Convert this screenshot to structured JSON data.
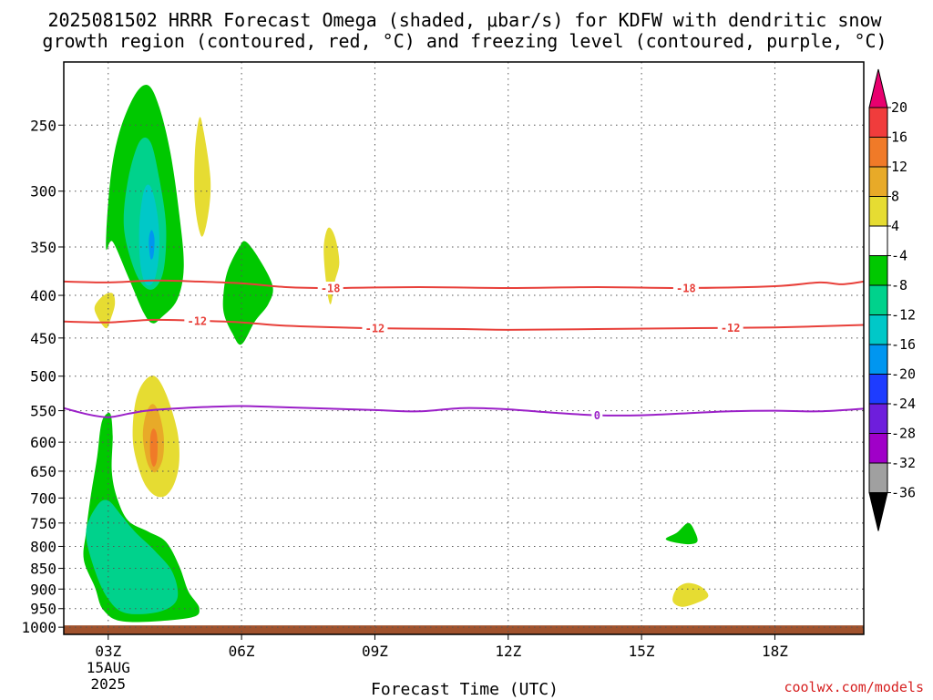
{
  "title_line1": "2025081502 HRRR Forecast Omega (shaded, μbar/s) for KDFW with dendritic snow",
  "title_line2": "growth region (contoured, red, °C) and freezing level (contoured, purple, °C)",
  "xlabel": "Forecast Time (UTC)",
  "credit": "coolwx.com/models",
  "chart_data": {
    "type": "contour",
    "title": "2025081502 HRRR Forecast Omega (shaded, μbar/s) for KDFW with dendritic snow growth region (contoured, red, °C) and freezing level (contoured, purple, °C)",
    "xlabel": "Forecast Time (UTC)",
    "ylabel": "",
    "xlim_hours": [
      2,
      20
    ],
    "ylim_hpa": [
      1020,
      210
    ],
    "y_scale": "log",
    "grid": true,
    "x_ticks": [
      {
        "hour": 3,
        "label": "03Z",
        "sub": [
          "15AUG",
          "2025"
        ]
      },
      {
        "hour": 6,
        "label": "06Z"
      },
      {
        "hour": 9,
        "label": "09Z"
      },
      {
        "hour": 12,
        "label": "12Z"
      },
      {
        "hour": 15,
        "label": "15Z"
      },
      {
        "hour": 18,
        "label": "18Z"
      }
    ],
    "y_ticks": [
      250,
      300,
      350,
      400,
      450,
      500,
      550,
      600,
      650,
      700,
      750,
      800,
      850,
      900,
      950,
      1000
    ],
    "colorbar": {
      "labels": [
        "20",
        "16",
        "12",
        "8",
        "4",
        "-4",
        "-8",
        "-12",
        "-16",
        "-20",
        "-24",
        "-28",
        "-32",
        "-36"
      ],
      "colors": [
        "#e8006e",
        "#f03c3c",
        "#f07a28",
        "#e8aa28",
        "#e6dc32",
        "#ffffff",
        "#00c800",
        "#00d28c",
        "#00c8c8",
        "#0096f0",
        "#1e3cff",
        "#6e1edc",
        "#a000c8",
        "#a0a0a0",
        "#000000"
      ]
    },
    "shaded_omega": [
      {
        "name": "upper-ascent-outer",
        "level": -4,
        "color": "#00c800",
        "points": [
          [
            2.95,
            350
          ],
          [
            3.05,
            290
          ],
          [
            3.25,
            255
          ],
          [
            3.6,
            230
          ],
          [
            3.9,
            224
          ],
          [
            4.15,
            238
          ],
          [
            4.4,
            270
          ],
          [
            4.6,
            320
          ],
          [
            4.7,
            370
          ],
          [
            4.55,
            405
          ],
          [
            4.2,
            425
          ],
          [
            4.0,
            432
          ],
          [
            3.8,
            420
          ],
          [
            3.45,
            380
          ],
          [
            3.1,
            345
          ]
        ]
      },
      {
        "name": "upper-ascent-mid",
        "level": -8,
        "color": "#00d28c",
        "points": [
          [
            3.35,
            330
          ],
          [
            3.45,
            290
          ],
          [
            3.7,
            262
          ],
          [
            3.95,
            262
          ],
          [
            4.15,
            290
          ],
          [
            4.3,
            330
          ],
          [
            4.25,
            372
          ],
          [
            4.05,
            392
          ],
          [
            3.8,
            390
          ],
          [
            3.55,
            368
          ]
        ]
      },
      {
        "name": "upper-ascent-core",
        "level": -12,
        "color": "#00c8c8",
        "points": [
          [
            3.7,
            330
          ],
          [
            3.8,
            300
          ],
          [
            3.95,
            296
          ],
          [
            4.1,
            318
          ],
          [
            4.15,
            350
          ],
          [
            4.05,
            382
          ],
          [
            3.85,
            388
          ],
          [
            3.72,
            366
          ]
        ]
      },
      {
        "name": "upper-ascent-peak",
        "level": -16,
        "color": "#0096f0",
        "points": [
          [
            3.92,
            340
          ],
          [
            3.98,
            334
          ],
          [
            4.04,
            342
          ],
          [
            4.02,
            358
          ],
          [
            3.96,
            362
          ],
          [
            3.92,
            352
          ]
        ]
      },
      {
        "name": "upper-descent-05z",
        "level": 4,
        "color": "#e6dc32",
        "points": [
          [
            4.95,
            270
          ],
          [
            5.05,
            245
          ],
          [
            5.15,
            255
          ],
          [
            5.3,
            290
          ],
          [
            5.25,
            320
          ],
          [
            5.1,
            340
          ],
          [
            4.95,
            310
          ]
        ]
      },
      {
        "name": "ascent-06z",
        "level": -4,
        "color": "#00c800",
        "points": [
          [
            5.6,
            395
          ],
          [
            5.7,
            372
          ],
          [
            5.95,
            350
          ],
          [
            6.1,
            345
          ],
          [
            6.4,
            362
          ],
          [
            6.7,
            390
          ],
          [
            6.6,
            410
          ],
          [
            6.3,
            430
          ],
          [
            6.0,
            458
          ],
          [
            5.8,
            445
          ],
          [
            5.6,
            420
          ]
        ]
      },
      {
        "name": "descent-08z",
        "level": 4,
        "color": "#e6dc32",
        "points": [
          [
            7.85,
            350
          ],
          [
            7.95,
            332
          ],
          [
            8.1,
            340
          ],
          [
            8.2,
            365
          ],
          [
            8.1,
            385
          ],
          [
            8.0,
            410
          ],
          [
            7.9,
            385
          ]
        ]
      },
      {
        "name": "descent-03z",
        "level": 4,
        "color": "#e6dc32",
        "points": [
          [
            2.7,
            412
          ],
          [
            2.9,
            400
          ],
          [
            3.1,
            398
          ],
          [
            3.15,
            410
          ],
          [
            3.05,
            428
          ],
          [
            2.95,
            438
          ],
          [
            2.75,
            424
          ]
        ]
      },
      {
        "name": "mid-descent-outer",
        "level": 4,
        "color": "#e6dc32",
        "points": [
          [
            3.55,
            580
          ],
          [
            3.62,
            535
          ],
          [
            3.8,
            508
          ],
          [
            4.05,
            500
          ],
          [
            4.3,
            525
          ],
          [
            4.55,
            580
          ],
          [
            4.6,
            630
          ],
          [
            4.5,
            670
          ],
          [
            4.3,
            695
          ],
          [
            4.05,
            695
          ],
          [
            3.8,
            670
          ],
          [
            3.6,
            620
          ]
        ]
      },
      {
        "name": "mid-descent-mid",
        "level": 8,
        "color": "#e8aa28",
        "points": [
          [
            3.78,
            590
          ],
          [
            3.85,
            555
          ],
          [
            4.0,
            540
          ],
          [
            4.15,
            555
          ],
          [
            4.25,
            592
          ],
          [
            4.22,
            630
          ],
          [
            4.05,
            652
          ],
          [
            3.88,
            635
          ]
        ]
      },
      {
        "name": "mid-descent-core",
        "level": 12,
        "color": "#f07a28",
        "points": [
          [
            3.95,
            590
          ],
          [
            4.02,
            578
          ],
          [
            4.1,
            590
          ],
          [
            4.1,
            628
          ],
          [
            4.02,
            642
          ],
          [
            3.95,
            625
          ]
        ]
      },
      {
        "name": "low-ascent-outer",
        "level": -4,
        "color": "#00c800",
        "points": [
          [
            2.45,
            830
          ],
          [
            2.5,
            770
          ],
          [
            2.6,
            700
          ],
          [
            2.75,
            625
          ],
          [
            2.82,
            580
          ],
          [
            2.9,
            560
          ],
          [
            3.05,
            555
          ],
          [
            3.1,
            590
          ],
          [
            3.08,
            650
          ],
          [
            3.2,
            700
          ],
          [
            3.45,
            745
          ],
          [
            3.9,
            768
          ],
          [
            4.3,
            790
          ],
          [
            4.6,
            845
          ],
          [
            4.8,
            905
          ],
          [
            5.05,
            950
          ],
          [
            4.8,
            975
          ],
          [
            3.4,
            985
          ],
          [
            2.9,
            955
          ],
          [
            2.7,
            895
          ]
        ]
      },
      {
        "name": "low-ascent-mid",
        "level": -8,
        "color": "#00d28c",
        "points": [
          [
            2.5,
            770
          ],
          [
            2.75,
            715
          ],
          [
            3.0,
            705
          ],
          [
            3.3,
            735
          ],
          [
            3.6,
            768
          ],
          [
            4.05,
            810
          ],
          [
            4.45,
            860
          ],
          [
            4.55,
            925
          ],
          [
            4.15,
            958
          ],
          [
            3.4,
            962
          ],
          [
            3.0,
            925
          ],
          [
            2.7,
            855
          ]
        ]
      },
      {
        "name": "ascent-16z",
        "level": -4,
        "color": "#00c800",
        "points": [
          [
            15.55,
            785
          ],
          [
            15.8,
            770
          ],
          [
            16.05,
            750
          ],
          [
            16.2,
            768
          ],
          [
            16.25,
            790
          ],
          [
            16.0,
            795
          ]
        ]
      },
      {
        "name": "descent-16z",
        "level": 4,
        "color": "#e6dc32",
        "points": [
          [
            15.7,
            930
          ],
          [
            15.8,
            898
          ],
          [
            16.05,
            885
          ],
          [
            16.35,
            895
          ],
          [
            16.5,
            918
          ],
          [
            16.25,
            935
          ],
          [
            15.9,
            945
          ]
        ]
      }
    ],
    "contours": [
      {
        "name": "dendritic -18C",
        "color": "#e8403a",
        "labels": [
          {
            "hour": 8.0,
            "text": "-18"
          },
          {
            "hour": 16.0,
            "text": "-18"
          }
        ],
        "points": [
          [
            2,
            385
          ],
          [
            3,
            386
          ],
          [
            4,
            384
          ],
          [
            5,
            385
          ],
          [
            6,
            387
          ],
          [
            7,
            391
          ],
          [
            8,
            392
          ],
          [
            10,
            391
          ],
          [
            12,
            392
          ],
          [
            14,
            391
          ],
          [
            16,
            392
          ],
          [
            18,
            390
          ],
          [
            19,
            386
          ],
          [
            19.5,
            388
          ],
          [
            20,
            385
          ]
        ]
      },
      {
        "name": "dendritic -12C",
        "color": "#e8403a",
        "labels": [
          {
            "hour": 5.0,
            "text": "-12"
          },
          {
            "hour": 9.0,
            "text": "-12"
          },
          {
            "hour": 17.0,
            "text": "-12"
          }
        ],
        "points": [
          [
            2,
            430
          ],
          [
            3,
            431
          ],
          [
            4,
            428
          ],
          [
            5,
            429
          ],
          [
            6,
            431
          ],
          [
            7,
            435
          ],
          [
            9,
            438
          ],
          [
            11,
            439
          ],
          [
            12,
            440
          ],
          [
            14,
            439
          ],
          [
            16,
            438
          ],
          [
            18,
            437
          ],
          [
            20,
            434
          ]
        ]
      },
      {
        "name": "freezing level 0C",
        "color": "#9b20c8",
        "labels": [
          {
            "hour": 14.0,
            "text": "0"
          }
        ],
        "points": [
          [
            2,
            546
          ],
          [
            2.5,
            555
          ],
          [
            3,
            560
          ],
          [
            3.5,
            554
          ],
          [
            4,
            549
          ],
          [
            5,
            545
          ],
          [
            6,
            543
          ],
          [
            7,
            545
          ],
          [
            8,
            547
          ],
          [
            9,
            549
          ],
          [
            10,
            551
          ],
          [
            11,
            546
          ],
          [
            12,
            548
          ],
          [
            13,
            553
          ],
          [
            14,
            557
          ],
          [
            15,
            557
          ],
          [
            16,
            554
          ],
          [
            17,
            551
          ],
          [
            18,
            550
          ],
          [
            19,
            551
          ],
          [
            20,
            547
          ]
        ]
      }
    ],
    "ground": {
      "color": "#a0522d",
      "from_hpa": 995,
      "to_hpa": 1020
    }
  }
}
